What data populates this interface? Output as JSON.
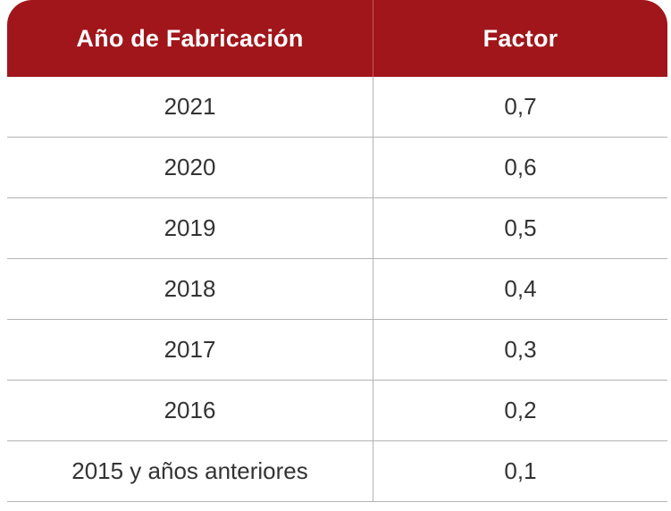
{
  "header": {
    "col_year": "Año de Fabricación",
    "col_factor": "Factor"
  },
  "rows": [
    {
      "year": "2021",
      "factor": "0,7"
    },
    {
      "year": "2020",
      "factor": "0,6"
    },
    {
      "year": "2019",
      "factor": "0,5"
    },
    {
      "year": "2018",
      "factor": "0,4"
    },
    {
      "year": "2017",
      "factor": "0,3"
    },
    {
      "year": "2016",
      "factor": "0,2"
    },
    {
      "year": "2015 y años anteriores",
      "factor": "0,1"
    }
  ],
  "colors": {
    "header_bg": "#a0161b",
    "header_text": "#ffffff",
    "body_text": "#333333",
    "divider": "#b3b3b3"
  }
}
